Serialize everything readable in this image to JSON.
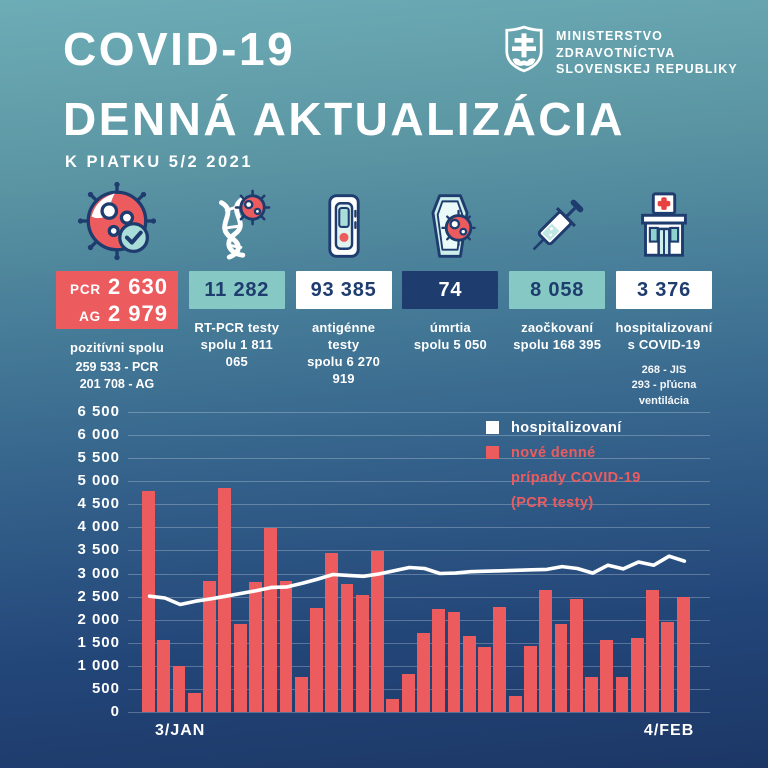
{
  "header": {
    "title_line1": "COVID-19",
    "title_line2": "DENNÁ AKTUALIZÁCIA",
    "date_note": "K PIATKU 5/2 2021",
    "ministry": {
      "line1": "MINISTERSTVO",
      "line2": "ZDRAVOTNÍCTVA",
      "line3": "SLOVENSKEJ REPUBLIKY"
    }
  },
  "stats": [
    {
      "id": "pozitivni",
      "icon": "virus-check-icon",
      "rows": [
        {
          "label": "PCR",
          "value": "2 630"
        },
        {
          "label": "AG",
          "value": "2 979"
        }
      ],
      "caption1": "pozitívni spolu",
      "sub1": "259 533 - PCR",
      "sub2": "201 708 - AG"
    },
    {
      "id": "rt-pcr-testy",
      "icon": "dna-virus-icon",
      "value": "11 282",
      "caption1": "RT-PCR testy",
      "caption2": "spolu 1 811 065"
    },
    {
      "id": "antigenne-testy",
      "icon": "antigen-test-icon",
      "value": "93 385",
      "caption1": "antigénne testy",
      "caption2": "spolu 6 270 919"
    },
    {
      "id": "umrtia",
      "icon": "coffin-virus-icon",
      "value": "74",
      "caption1": "úmrtia",
      "caption2": "spolu 5 050"
    },
    {
      "id": "zaockovani",
      "icon": "syringe-icon",
      "value": "8 058",
      "caption1": "zaočkovaní",
      "caption2": "spolu 168 395"
    },
    {
      "id": "hospitalizovani",
      "icon": "hospital-icon",
      "value": "3 376",
      "caption1": "hospitalizovaní",
      "caption2": "s COVID-19",
      "sub1": "268 - JIS",
      "sub2": "293 - pľúcna ventilácia"
    }
  ],
  "legend": {
    "line_label": "hospitalizovaní",
    "bar_label_lines": [
      "nové denné",
      "prípady COVID-19",
      "(PCR testy)"
    ]
  },
  "chart_data": {
    "type": "bar",
    "title": "",
    "xlabel": "",
    "ylabel": "",
    "ylim": [
      0,
      6500
    ],
    "y_tick_step": 500,
    "grid": true,
    "legend_position": "top-right-inside",
    "y_ticks": [
      "6 500",
      "6 000",
      "5 500",
      "5 000",
      "4 500",
      "4 000",
      "3 500",
      "3 000",
      "2 500",
      "2 000",
      "1 500",
      "1 000",
      "500",
      "0"
    ],
    "x_tick_labels": [
      {
        "label": "3/JAN",
        "bar_index": 2
      },
      {
        "label": "4/FEB",
        "bar_index": 34
      }
    ],
    "series": [
      {
        "name": "nové denné prípady COVID-19 (PCR testy)",
        "type": "bar",
        "color": "#ec5c5f",
        "values": [
          4790,
          1560,
          1000,
          410,
          2830,
          4860,
          1910,
          2810,
          3980,
          2830,
          750,
          2250,
          3440,
          2770,
          2530,
          3480,
          290,
          830,
          1710,
          2240,
          2170,
          1650,
          1400,
          2270,
          350,
          1440,
          2640,
          1910,
          2440,
          750,
          1570,
          750,
          1610,
          2640,
          1960,
          2500
        ]
      },
      {
        "name": "hospitalizovaní",
        "type": "line",
        "color": "#ffffff",
        "values": [
          2510,
          2470,
          2330,
          2400,
          2450,
          2510,
          2570,
          2630,
          2700,
          2710,
          2790,
          2880,
          2980,
          2960,
          2940,
          2990,
          3060,
          3130,
          3110,
          3000,
          3010,
          3040,
          3050,
          3060,
          3070,
          3080,
          3090,
          3150,
          3110,
          3010,
          3180,
          3100,
          3250,
          3180,
          3376,
          3270
        ]
      }
    ]
  },
  "colors": {
    "accent_red": "#ec5c5f",
    "teal_box": "#85c8c4",
    "navy": "#1e3c6e",
    "white": "#ffffff",
    "background_top": "#6dadb6",
    "background_bottom": "#1c3766"
  }
}
